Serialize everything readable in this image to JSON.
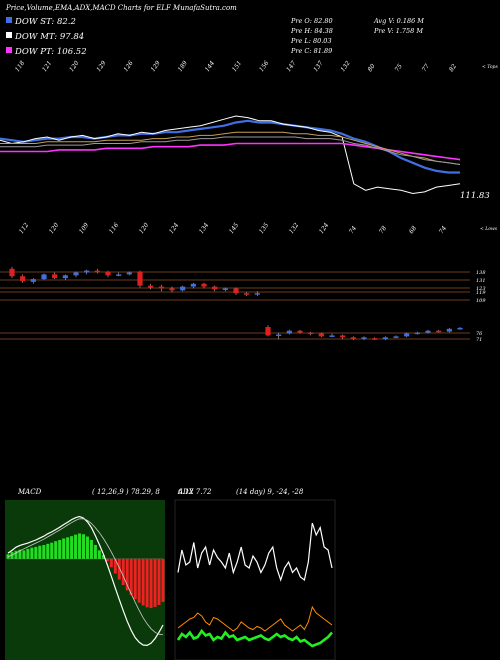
{
  "header": {
    "title": "Price,Volume,EMA,ADX,MACD Charts for ELF MunafaSutra.com",
    "legend": [
      {
        "label": "DOW ST: 82.2",
        "color": "#3f6fe0"
      },
      {
        "label": "DOW MT: 97.84",
        "color": "#ffffff"
      },
      {
        "label": "DOW PT: 106.52",
        "color": "#ff33ff"
      }
    ],
    "stats": [
      {
        "label": "Pre  O: 82.80"
      },
      {
        "label": "Avg V: 0.186  M"
      },
      {
        "label": "Pre  H: 84.38"
      },
      {
        "label": "Pre  V: 1.758  M"
      },
      {
        "label": "Pre  L: 80.03"
      },
      {
        "label": "Pre  C: 81.89"
      }
    ]
  },
  "chart_data": [
    {
      "type": "line",
      "panel": "price",
      "top_tick_labels": [
        "118",
        "121",
        "120",
        "129",
        "126",
        "129",
        "189",
        "144",
        "151",
        "156",
        "147",
        "137",
        "132",
        "80",
        "75",
        "77",
        "82"
      ],
      "top_tick_suffix": "< Tops",
      "bottom_tick_labels": [
        "112",
        "120",
        "109",
        "116",
        "120",
        "124",
        "134",
        "145",
        "135",
        "132",
        "124",
        "74",
        "78",
        "68",
        "74"
      ],
      "bottom_tick_suffix": "< Lows",
      "last_price_label": "111.83",
      "series": [
        {
          "color": "#3f6fe0",
          "values": [
            133,
            132,
            131,
            132,
            133,
            133,
            134,
            134,
            133,
            134,
            135,
            135,
            136,
            136,
            137,
            137,
            138,
            139,
            140,
            141,
            143,
            144,
            143,
            143,
            142,
            141,
            140,
            139,
            138,
            136,
            133,
            131,
            128,
            125,
            121,
            118,
            115,
            113,
            112,
            112
          ]
        },
        {
          "color": "#ffffff",
          "values": [
            132,
            130,
            131,
            133,
            134,
            132,
            134,
            135,
            133,
            134,
            136,
            135,
            137,
            136,
            138,
            139,
            140,
            141,
            143,
            145,
            147,
            146,
            144,
            144,
            142,
            141,
            140,
            138,
            137,
            134,
            105,
            101,
            103,
            102,
            101,
            99,
            100,
            103,
            104,
            105
          ]
        },
        {
          "color": "#ff33ff",
          "values": [
            125,
            125,
            125,
            125,
            125,
            126,
            126,
            126,
            126,
            127,
            127,
            127,
            127,
            128,
            128,
            128,
            128,
            129,
            129,
            129,
            130,
            130,
            130,
            130,
            130,
            130,
            130,
            130,
            130,
            130,
            129,
            128,
            127,
            126,
            125,
            124,
            123,
            122,
            121,
            120
          ]
        },
        {
          "color": "#c8a050",
          "values": [
            130,
            130,
            130,
            130,
            131,
            131,
            131,
            131,
            131,
            132,
            132,
            132,
            132,
            133,
            133,
            134,
            134,
            135,
            135,
            136,
            137,
            137,
            137,
            137,
            137,
            136,
            136,
            135,
            135,
            134,
            132,
            130,
            128,
            126,
            124,
            122,
            121,
            119,
            118,
            117
          ]
        },
        {
          "color": "#9a9a9a",
          "values": [
            128,
            128,
            128,
            128,
            129,
            129,
            129,
            129,
            130,
            130,
            130,
            130,
            131,
            131,
            131,
            132,
            132,
            133,
            133,
            134,
            134,
            134,
            134,
            134,
            134,
            134,
            133,
            133,
            133,
            132,
            130,
            129,
            127,
            125,
            123,
            122,
            120,
            119,
            118,
            117
          ]
        }
      ]
    },
    {
      "type": "candlestick",
      "panel": "lower-price",
      "levels": [
        "138",
        "131",
        "123",
        "119",
        "109",
        "76",
        "71"
      ],
      "candles": [
        {
          "o": 146,
          "c": 138,
          "h": 148,
          "l": 136
        },
        {
          "o": 138,
          "c": 133,
          "h": 140,
          "l": 131
        },
        {
          "o": 132,
          "c": 135,
          "h": 136,
          "l": 130
        },
        {
          "o": 135,
          "c": 140,
          "h": 141,
          "l": 134
        },
        {
          "o": 140,
          "c": 136,
          "h": 142,
          "l": 135
        },
        {
          "o": 136,
          "c": 139,
          "h": 140,
          "l": 134
        },
        {
          "o": 139,
          "c": 142,
          "h": 143,
          "l": 137
        },
        {
          "o": 142,
          "c": 144,
          "h": 145,
          "l": 140
        },
        {
          "o": 144,
          "c": 143,
          "h": 146,
          "l": 141
        },
        {
          "o": 143,
          "c": 139,
          "h": 144,
          "l": 137
        },
        {
          "o": 139,
          "c": 140,
          "h": 142,
          "l": 138
        },
        {
          "o": 140,
          "c": 142,
          "h": 143,
          "l": 139
        },
        {
          "o": 143,
          "c": 128,
          "h": 144,
          "l": 126
        },
        {
          "o": 128,
          "c": 126,
          "h": 130,
          "l": 124
        },
        {
          "o": 127,
          "c": 125,
          "h": 129,
          "l": 122
        },
        {
          "o": 125,
          "c": 123,
          "h": 127,
          "l": 121
        },
        {
          "o": 123,
          "c": 127,
          "h": 128,
          "l": 122
        },
        {
          "o": 127,
          "c": 130,
          "h": 131,
          "l": 125
        },
        {
          "o": 130,
          "c": 127,
          "h": 131,
          "l": 125
        },
        {
          "o": 127,
          "c": 124,
          "h": 128,
          "l": 122
        },
        {
          "o": 124,
          "c": 125,
          "h": 126,
          "l": 122
        },
        {
          "o": 125,
          "c": 120,
          "h": 126,
          "l": 118
        },
        {
          "o": 120,
          "c": 119,
          "h": 121,
          "l": 117
        },
        {
          "o": 119,
          "c": 120,
          "h": 122,
          "l": 117
        },
        {
          "o": 84,
          "c": 75,
          "h": 86,
          "l": 74
        },
        {
          "o": 75,
          "c": 76,
          "h": 78,
          "l": 71
        },
        {
          "o": 77,
          "c": 80,
          "h": 81,
          "l": 76
        },
        {
          "o": 80,
          "c": 78,
          "h": 81,
          "l": 77
        },
        {
          "o": 78,
          "c": 77,
          "h": 79,
          "l": 75
        },
        {
          "o": 77,
          "c": 74,
          "h": 78,
          "l": 73
        },
        {
          "o": 74,
          "c": 75,
          "h": 77,
          "l": 73
        },
        {
          "o": 75,
          "c": 73,
          "h": 76,
          "l": 71
        },
        {
          "o": 73,
          "c": 72,
          "h": 74,
          "l": 70
        },
        {
          "o": 72,
          "c": 73,
          "h": 74,
          "l": 70
        },
        {
          "o": 72,
          "c": 71,
          "h": 73,
          "l": 70
        },
        {
          "o": 71,
          "c": 73,
          "h": 74,
          "l": 70
        },
        {
          "o": 73,
          "c": 74,
          "h": 75,
          "l": 72
        },
        {
          "o": 74,
          "c": 77,
          "h": 78,
          "l": 73
        },
        {
          "o": 77,
          "c": 78,
          "h": 79,
          "l": 76
        },
        {
          "o": 78,
          "c": 80,
          "h": 81,
          "l": 77
        },
        {
          "o": 80,
          "c": 79,
          "h": 81,
          "l": 78
        },
        {
          "o": 79,
          "c": 82,
          "h": 83,
          "l": 78
        },
        {
          "o": 82,
          "c": 83,
          "h": 84,
          "l": 81
        }
      ]
    },
    {
      "type": "bar",
      "panel": "macd",
      "title": "MACD",
      "params_label": "( 12,26,9 ) 78.29,  8",
      "histogram": [
        1.2,
        1.8,
        2.1,
        2.4,
        2.2,
        2.6,
        2.9,
        3.1,
        3.4,
        3.6,
        3.9,
        4.2,
        4.6,
        4.9,
        5.3,
        5.6,
        5.9,
        6.3,
        6.6,
        6.4,
        5.8,
        4.9,
        3.6,
        2.2,
        1.0,
        -0.6,
        -2.2,
        -3.8,
        -5.4,
        -6.8,
        -8.2,
        -9.4,
        -10.5,
        -11.4,
        -12.1,
        -12.6,
        -12.8,
        -12.5,
        -12.0,
        -11.2
      ],
      "macd": [
        1.5,
        2.2,
        3.0,
        3.5,
        3.8,
        4.1,
        4.5,
        4.9,
        5.4,
        5.9,
        6.5,
        7.0,
        7.6,
        8.2,
        8.9,
        9.5,
        10.2,
        10.7,
        11.0,
        10.6,
        9.6,
        8.1,
        6.0,
        3.7,
        1.2,
        -1.6,
        -4.5,
        -7.6,
        -10.6,
        -13.5,
        -16.2,
        -18.6,
        -20.5,
        -21.7,
        -22.4,
        -22.5,
        -21.9,
        -20.7,
        -19.1,
        -17.2
      ],
      "signal": [
        0.5,
        1.0,
        1.5,
        2.1,
        2.6,
        3.1,
        3.6,
        4.1,
        4.6,
        5.1,
        5.7,
        6.3,
        6.9,
        7.5,
        8.1,
        8.8,
        9.4,
        10.0,
        10.4,
        10.4,
        10.0,
        9.2,
        8.1,
        6.8,
        5.3,
        3.6,
        1.8,
        -0.2,
        -2.3,
        -4.5,
        -6.8,
        -9.1,
        -11.3,
        -13.4,
        -15.3,
        -16.9,
        -18.2,
        -19.1,
        -19.6,
        -19.7
      ],
      "ylim": [
        -25,
        14
      ]
    },
    {
      "type": "line",
      "panel": "adx",
      "title": "ADX",
      "value_label": "6.12  7.72",
      "params_label": "(14 day) 9,  -24,  -28",
      "series": [
        {
          "name": "adx",
          "color": "#ffffff",
          "values": [
            55,
            70,
            60,
            62,
            75,
            58,
            68,
            72,
            60,
            70,
            65,
            62,
            58,
            68,
            55,
            62,
            72,
            60,
            58,
            66,
            62,
            55,
            60,
            68,
            72,
            58,
            50,
            58,
            62,
            55,
            58,
            52,
            50,
            62,
            88,
            80,
            85,
            72,
            70,
            58
          ]
        },
        {
          "name": "+di",
          "color": "#ff8c00",
          "values": [
            18,
            20,
            22,
            24,
            25,
            28,
            26,
            22,
            20,
            25,
            24,
            22,
            20,
            18,
            16,
            18,
            22,
            20,
            18,
            17,
            19,
            18,
            16,
            18,
            20,
            22,
            24,
            20,
            18,
            16,
            18,
            20,
            17,
            22,
            32,
            28,
            26,
            24,
            22,
            20
          ]
        },
        {
          "name": "-di",
          "color": "#22ee22",
          "values": [
            10,
            14,
            12,
            15,
            11,
            12,
            16,
            13,
            14,
            10,
            12,
            11,
            15,
            12,
            13,
            10,
            11,
            12,
            10,
            11,
            12,
            13,
            11,
            10,
            12,
            14,
            12,
            13,
            11,
            10,
            12,
            9,
            10,
            8,
            6,
            7,
            8,
            10,
            12,
            15
          ]
        }
      ],
      "ylim": [
        0,
        100
      ]
    }
  ]
}
